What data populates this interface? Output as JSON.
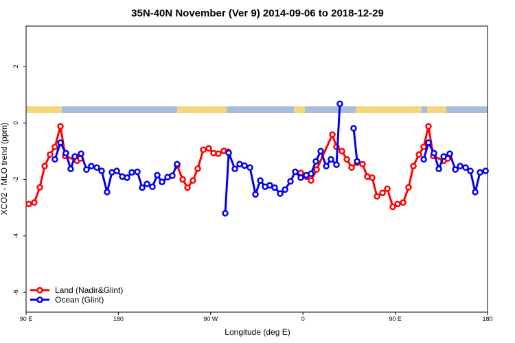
{
  "chart_data": {
    "type": "line",
    "title": "35N-40N November (Ver 9)   2014-09-06 to 2018-12-29",
    "x_label": "Longitude (deg E)",
    "y_label": "XCO2 - MLO trend (ppm)",
    "xlim": [
      90,
      540
    ],
    "xticks": [
      {
        "value": 90,
        "label": "90 E"
      },
      {
        "value": 180,
        "label": "180"
      },
      {
        "value": 270,
        "label": "90 W"
      },
      {
        "value": 360,
        "label": "0"
      },
      {
        "value": 450,
        "label": "90 E"
      },
      {
        "value": 540,
        "label": "180"
      }
    ],
    "ylim": [
      -6.7,
      3.43
    ],
    "yticks": [
      -6,
      -4,
      -2,
      0,
      2
    ],
    "legend": "bottom-left",
    "series": [
      {
        "name": "Land (Nadir&Glint)",
        "color": "#ff0000",
        "x": [
          92.7,
          98.0,
          103.4,
          108.1,
          113.4,
          118.1,
          123.5,
          128.2,
          139.6,
          142.9,
          null,
          237.3,
          242.7,
          247.4,
          252.7,
          257.4,
          262.8,
          268.1,
          272.8,
          277.5,
          282.9,
          286.9,
          null,
          357.9,
          363.2,
          367.9,
          373.3,
          388.7,
          392.7,
          398.1,
          402.8,
          407.4,
          412.8,
          418.1,
          422.8,
          427.5,
          432.2,
          437.6,
          442.3,
          447.6,
          452.3,
          457.7,
          463.0,
          467.7,
          473.1,
          477.8,
          482.4,
          487.1,
          497.2,
          501.2
        ],
        "values": [
          -2.87,
          -2.82,
          -2.28,
          -1.53,
          -1.12,
          -0.85,
          -0.12,
          -1.17,
          -1.34,
          -1.26,
          null,
          -1.51,
          -2.0,
          -2.29,
          -2.04,
          -1.62,
          -0.95,
          -0.9,
          -1.07,
          -1.09,
          -0.99,
          -1.02,
          null,
          -1.77,
          -1.9,
          -2.04,
          -1.65,
          -0.41,
          -0.85,
          -1.0,
          -1.29,
          -1.58,
          -1.41,
          -1.46,
          -1.9,
          -1.94,
          -2.6,
          -2.48,
          -2.33,
          -2.97,
          -2.87,
          -2.82,
          -2.28,
          -1.53,
          -1.12,
          -0.85,
          -0.12,
          -1.17,
          -1.34,
          -1.26
        ]
      },
      {
        "name": "Ocean (Glint)",
        "color": "#0000ee",
        "x": [
          118.1,
          123.5,
          128.8,
          133.5,
          137.5,
          143.6,
          148.9,
          153.6,
          159.0,
          163.7,
          169.0,
          173.7,
          178.4,
          183.8,
          188.4,
          193.1,
          198.5,
          203.2,
          207.9,
          213.2,
          217.9,
          222.6,
          228.0,
          232.6,
          237.3,
          null,
          284.2,
          287.6,
          293.6,
          298.3,
          303.0,
          308.3,
          313.7,
          318.4,
          323.1,
          327.7,
          332.4,
          337.8,
          342.5,
          347.8,
          352.5,
          357.9,
          363.2,
          367.9,
          372.6,
          377.3,
          382.7,
          387.3,
          392.7,
          396.0,
          null,
          409.4,
          412.8,
          null,
          477.8,
          482.4,
          487.8,
          492.5,
          497.2,
          503.2,
          508.6,
          513.3,
          518.6,
          523.3,
          528.0,
          532.7,
          538.1
        ],
        "values": [
          -1.29,
          -0.7,
          -1.07,
          -1.63,
          -1.19,
          -1.09,
          -1.65,
          -1.53,
          -1.58,
          -1.7,
          -2.45,
          -1.75,
          -1.7,
          -1.9,
          -1.94,
          -1.75,
          -1.73,
          -2.29,
          -2.16,
          -2.26,
          -1.85,
          -2.09,
          -1.92,
          -1.87,
          -1.46,
          null,
          -3.2,
          -1.06,
          -1.63,
          -1.46,
          -1.51,
          -1.58,
          -2.53,
          -2.04,
          -2.26,
          -2.21,
          -2.29,
          -2.5,
          -2.36,
          -2.07,
          -1.73,
          -1.94,
          -1.85,
          -1.8,
          -1.36,
          -1.0,
          -1.53,
          -1.29,
          -1.48,
          0.68,
          null,
          -0.19,
          -1.36,
          null,
          -1.29,
          -0.7,
          -1.07,
          -1.63,
          -1.19,
          -1.09,
          -1.65,
          -1.53,
          -1.58,
          -1.7,
          -2.45,
          -1.75,
          -1.7
        ]
      }
    ]
  }
}
